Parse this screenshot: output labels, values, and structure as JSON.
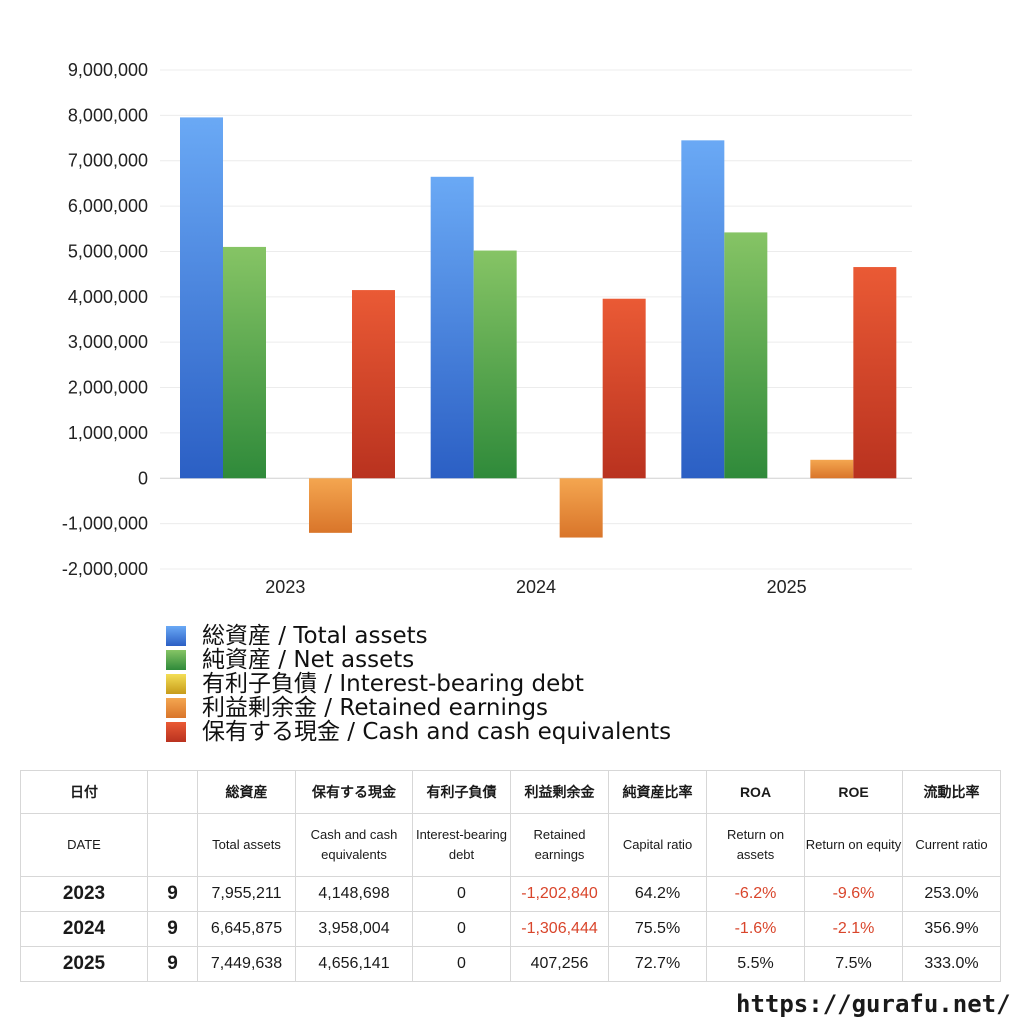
{
  "chart_data": {
    "type": "bar",
    "categories": [
      "2023",
      "2024",
      "2025"
    ],
    "ylim": [
      -2000000,
      9000000
    ],
    "ytick_labels": [
      "9,000,000",
      "8,000,000",
      "7,000,000",
      "6,000,000",
      "5,000,000",
      "4,000,000",
      "3,000,000",
      "2,000,000",
      "1,000,000",
      "0",
      "-1,000,000",
      "-2,000,000"
    ],
    "grid": true,
    "legend_position": "bottom",
    "series": [
      {
        "name": "総資産 / Total assets",
        "values": [
          7955211,
          6645875,
          7449638
        ],
        "color": "#3f7fe0"
      },
      {
        "name": "純資産 / Net assets",
        "values": [
          5100000,
          5020000,
          5420000
        ],
        "color": "#4aa04a"
      },
      {
        "name": "有利子負債 / Interest-bearing debt",
        "values": [
          0,
          0,
          0
        ],
        "color": "#e3c52f"
      },
      {
        "name": "利益剰余金 / Retained earnings",
        "values": [
          -1202840,
          -1306444,
          407256
        ],
        "color": "#e8892f"
      },
      {
        "name": "保有する現金 /  Cash and cash equivalents",
        "values": [
          4148698,
          3958004,
          4656141
        ],
        "color": "#d9452b"
      }
    ]
  },
  "table": {
    "headers_jp": [
      "日付",
      "",
      "総資産",
      "保有する現金",
      "有利子負債",
      "利益剰余金",
      "純資産比率",
      "ROA",
      "ROE",
      "流動比率"
    ],
    "headers_en": [
      "DATE",
      "",
      "Total assets",
      "Cash and cash equivalents",
      "Interest-bearing debt",
      "Retained earnings",
      "Capital ratio",
      "Return on assets",
      "Return on equity",
      "Current ratio"
    ],
    "rows": [
      {
        "year": "2023",
        "month": "9",
        "total_assets": "7,955,211",
        "cash": "4,148,698",
        "debt": "0",
        "retained": "-1,202,840",
        "capital_ratio": "64.2%",
        "roa": "-6.2%",
        "roe": "-9.6%",
        "current_ratio": "253.0%"
      },
      {
        "year": "2024",
        "month": "9",
        "total_assets": "6,645,875",
        "cash": "3,958,004",
        "debt": "0",
        "retained": "-1,306,444",
        "capital_ratio": "75.5%",
        "roa": "-1.6%",
        "roe": "-2.1%",
        "current_ratio": "356.9%"
      },
      {
        "year": "2025",
        "month": "9",
        "total_assets": "7,449,638",
        "cash": "4,656,141",
        "debt": "0",
        "retained": "407,256",
        "capital_ratio": "72.7%",
        "roa": "5.5%",
        "roe": "7.5%",
        "current_ratio": "333.0%"
      }
    ]
  },
  "footer": {
    "url": "https://gurafu.net/"
  }
}
